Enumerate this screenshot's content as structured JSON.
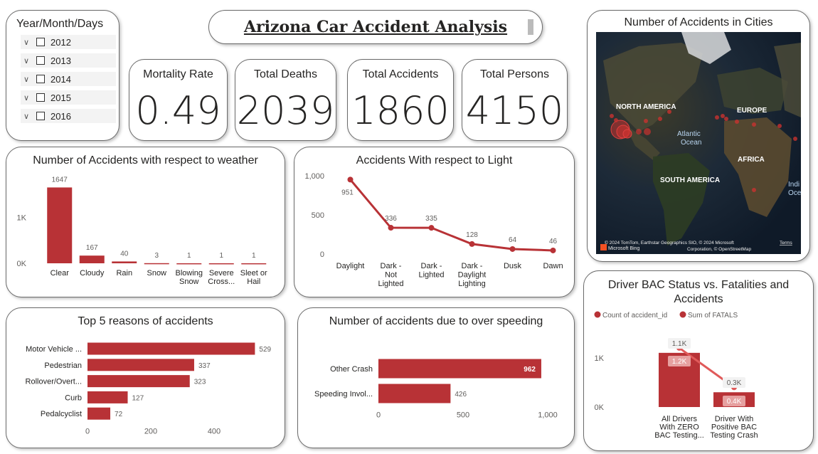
{
  "main_title": "Arizona Car Accident Analysis",
  "slicer": {
    "title": "Year/Month/Days",
    "items": [
      "2012",
      "2013",
      "2014",
      "2015",
      "2016"
    ]
  },
  "kpis": [
    {
      "label": "Mortality Rate",
      "value": "0.49"
    },
    {
      "label": "Total Deaths",
      "value": "2039"
    },
    {
      "label": "Total Accidents",
      "value": "1860"
    },
    {
      "label": "Total Persons",
      "value": "4150"
    }
  ],
  "map_card": {
    "title": "Number of Accidents in Cities",
    "labels": [
      "NORTH AMERICA",
      "EUROPE",
      "Atlantic",
      "Ocean",
      "AFRICA",
      "SOUTH AMERICA",
      "Indi",
      "Oce"
    ],
    "attribution_1": "© 2024 TomTom, Earthstar Geographics SIO, © 2024 Microsoft",
    "attribution_terms": "Terms",
    "attribution_2": "Corporation, © OpenStreetMap",
    "bing": "Microsoft Bing"
  },
  "colors": {
    "accent": "#b83236",
    "map_bubble": "#c8322f"
  },
  "chart_data": [
    {
      "id": "weather",
      "type": "bar",
      "title": "Number of Accidents with respect to weather",
      "categories": [
        "Clear",
        "Cloudy",
        "Rain",
        "Snow",
        "Blowing Snow",
        "Severe Cross...",
        "Sleet or Hail"
      ],
      "category_lines": [
        [
          "Clear"
        ],
        [
          "Cloudy"
        ],
        [
          "Rain"
        ],
        [
          "Snow"
        ],
        [
          "Blowing",
          "Snow"
        ],
        [
          "Severe",
          "Cross..."
        ],
        [
          "Sleet or",
          "Hail"
        ]
      ],
      "values": [
        1647,
        167,
        40,
        3,
        1,
        1,
        1
      ],
      "ylim": [
        0,
        1700
      ],
      "yticks": [
        {
          "value": 0,
          "label": "0K"
        },
        {
          "value": 1000,
          "label": "1K"
        }
      ]
    },
    {
      "id": "light",
      "type": "line",
      "title": "Accidents With respect to Light",
      "categories": [
        "Daylight",
        "Dark - Not Lighted",
        "Dark - Lighted",
        "Dark - Daylight Lighting",
        "Dusk",
        "Dawn"
      ],
      "category_lines": [
        [
          "Daylight"
        ],
        [
          "Dark -",
          "Not",
          "Lighted"
        ],
        [
          "Dark -",
          "Lighted"
        ],
        [
          "Dark -",
          "Daylight",
          "Lighting"
        ],
        [
          "Dusk"
        ],
        [
          "Dawn"
        ]
      ],
      "values": [
        951,
        336,
        335,
        128,
        64,
        46
      ],
      "ylim": [
        0,
        1000
      ],
      "yticks": [
        {
          "value": 0,
          "label": "0"
        },
        {
          "value": 500,
          "label": "500"
        },
        {
          "value": 1000,
          "label": "1,000"
        }
      ]
    },
    {
      "id": "reasons",
      "type": "bar",
      "orientation": "horizontal",
      "title": "Top 5 reasons of accidents",
      "categories": [
        "Motor Vehicle ...",
        "Pedestrian",
        "Rollover/Overt...",
        "Curb",
        "Pedalcyclist"
      ],
      "values": [
        529,
        337,
        323,
        127,
        72
      ],
      "xlim": [
        0,
        600
      ],
      "xticks": [
        {
          "value": 0,
          "label": "0"
        },
        {
          "value": 200,
          "label": "200"
        },
        {
          "value": 400,
          "label": "400"
        }
      ]
    },
    {
      "id": "speeding",
      "type": "bar",
      "orientation": "horizontal",
      "title": "Number of accidents due to over speeding",
      "categories": [
        "Other Crash",
        "Speeding Invol..."
      ],
      "values": [
        962,
        426
      ],
      "xlim": [
        0,
        1000
      ],
      "xticks": [
        {
          "value": 0,
          "label": "0"
        },
        {
          "value": 500,
          "label": "500"
        },
        {
          "value": 1000,
          "label": "1,000"
        }
      ]
    },
    {
      "id": "bac",
      "type": "bar",
      "title": "Driver BAC Status vs. Fatalities and Accidents",
      "title_lines": [
        "Driver BAC Status vs. Fatalities and",
        "Accidents"
      ],
      "categories": [
        "All Drivers With ZERO BAC Testing...",
        "Driver With Positive BAC Testing Crash"
      ],
      "category_lines": [
        [
          "All Drivers",
          "With ZERO",
          "BAC Testing..."
        ],
        [
          "Driver With",
          "Positive BAC",
          "Testing Crash"
        ]
      ],
      "series": [
        {
          "name": "Count of accident_id",
          "values": [
            1100,
            300
          ],
          "labels": [
            "1.1K",
            "0.3K"
          ],
          "kind": "bar"
        },
        {
          "name": "Sum of FATALS",
          "values": [
            1200,
            400
          ],
          "labels": [
            "1.2K",
            "0.4K"
          ],
          "kind": "line"
        }
      ],
      "ylim": [
        0,
        1300
      ],
      "yticks": [
        {
          "value": 0,
          "label": "0K"
        },
        {
          "value": 1000,
          "label": "1K"
        }
      ]
    }
  ]
}
